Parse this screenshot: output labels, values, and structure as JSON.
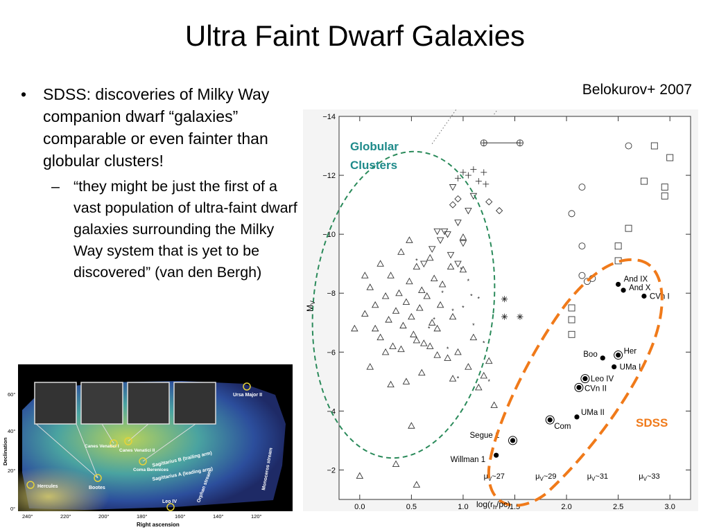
{
  "slide": {
    "title": "Ultra Faint Dwarf Galaxies",
    "bullet": "SDSS: discoveries of Milky Way companion dwarf “galaxies” comparable or even fainter than globular clusters!",
    "sub_bullet": "“they might be just the first of a vast population of ultra-faint dwarf galaxies surrounding the Milky Way system that is yet to be discovered”  (van den Bergh)",
    "bullet_marker": "•",
    "sub_marker": "–",
    "credit": "Belokurov+ 2007"
  },
  "colors": {
    "globular_ellipse": "#2a8a5a",
    "sdss_ellipse": "#f07a1a",
    "globular_label": "#1e8a8a",
    "sdss_label": "#f07a1a"
  },
  "chart_data": {
    "type": "scatter",
    "xlabel": "log(r",
    "xlabel_sub": "h",
    "xlabel_end": "/pc)",
    "ylabel": "M",
    "ylabel_sub": "V",
    "xlim": [
      -0.2,
      3.2
    ],
    "ylim": [
      -1.0,
      -14.0
    ],
    "xticks": [
      0.0,
      0.5,
      1.0,
      1.5,
      2.0,
      2.5,
      3.0
    ],
    "xtick_labels": [
      "0.0",
      "0.5",
      "1.0",
      "1.5",
      "2.0",
      "2.5",
      "3.0"
    ],
    "yticks": [
      -14,
      -12,
      -10,
      -8,
      -6,
      -4,
      -2
    ],
    "ytick_labels": [
      "−14",
      "−12",
      "−10",
      "−8",
      "−6",
      "−4",
      "−2"
    ],
    "iso_lines": [
      {
        "label": "μ",
        "sub": "V",
        "value": "~27",
        "mu": 27
      },
      {
        "label": "μ",
        "sub": "V",
        "value": "~29",
        "mu": 29
      },
      {
        "label": "μ",
        "sub": "V",
        "value": "~31",
        "mu": 31
      },
      {
        "label": "μ",
        "sub": "V",
        "value": "~33",
        "mu": 33
      }
    ],
    "annotations": {
      "globular": [
        "Globular",
        "Clusters"
      ],
      "sdss": "SDSS"
    },
    "named_points": [
      {
        "name": "And IX",
        "x": 2.5,
        "y": -8.3,
        "marker": "dot"
      },
      {
        "name": "And X",
        "x": 2.55,
        "y": -8.1,
        "marker": "dot"
      },
      {
        "name": "CVn I",
        "x": 2.75,
        "y": -7.9,
        "marker": "dot"
      },
      {
        "name": "Her",
        "x": 2.5,
        "y": -5.9,
        "marker": "ringdot"
      },
      {
        "name": "Boo",
        "x": 2.35,
        "y": -5.8,
        "marker": "dot"
      },
      {
        "name": "UMa I",
        "x": 2.46,
        "y": -5.5,
        "marker": "dot"
      },
      {
        "name": "Leo IV",
        "x": 2.18,
        "y": -5.1,
        "marker": "ringdot"
      },
      {
        "name": "CVn II",
        "x": 2.12,
        "y": -4.8,
        "marker": "ringdot"
      },
      {
        "name": "UMa II",
        "x": 2.1,
        "y": -3.8,
        "marker": "dot"
      },
      {
        "name": "Com",
        "x": 1.84,
        "y": -3.7,
        "marker": "ringdot"
      },
      {
        "name": "Segue 1",
        "x": 1.48,
        "y": -3.0,
        "marker": "ringdot"
      },
      {
        "name": "Willman 1",
        "x": 1.32,
        "y": -2.5,
        "marker": "dot"
      }
    ],
    "series": [
      {
        "marker": "triangle",
        "points": [
          [
            -0.05,
            -6.8
          ],
          [
            0.05,
            -7.3
          ],
          [
            0.1,
            -8.2
          ],
          [
            0.15,
            -7.6
          ],
          [
            0.2,
            -9.0
          ],
          [
            0.2,
            -6.5
          ],
          [
            0.25,
            -7.9
          ],
          [
            0.28,
            -7.1
          ],
          [
            0.3,
            -8.6
          ],
          [
            0.32,
            -6.2
          ],
          [
            0.35,
            -7.4
          ],
          [
            0.38,
            -8.0
          ],
          [
            0.4,
            -9.4
          ],
          [
            0.42,
            -6.9
          ],
          [
            0.45,
            -7.7
          ],
          [
            0.48,
            -8.4
          ],
          [
            0.5,
            -7.2
          ],
          [
            0.52,
            -6.6
          ],
          [
            0.55,
            -8.9
          ],
          [
            0.58,
            -7.5
          ],
          [
            0.6,
            -8.1
          ],
          [
            0.62,
            -6.3
          ],
          [
            0.65,
            -7.9
          ],
          [
            0.68,
            -9.2
          ],
          [
            0.7,
            -7.0
          ],
          [
            0.72,
            -8.5
          ],
          [
            0.75,
            -6.8
          ],
          [
            0.78,
            -7.6
          ],
          [
            0.8,
            -8.3
          ],
          [
            0.85,
            -5.8
          ],
          [
            0.9,
            -7.2
          ],
          [
            0.95,
            -6.0
          ],
          [
            1.0,
            -8.8
          ],
          [
            1.05,
            -5.5
          ],
          [
            1.1,
            -6.5
          ],
          [
            1.15,
            -4.8
          ],
          [
            1.2,
            -5.2
          ],
          [
            1.3,
            -4.2
          ],
          [
            0.3,
            -4.9
          ],
          [
            0.5,
            -3.5
          ],
          [
            0.35,
            -2.2
          ],
          [
            0.1,
            -5.5
          ],
          [
            0.0,
            -1.8
          ],
          [
            0.55,
            -1.5
          ],
          [
            0.9,
            -5.1
          ],
          [
            1.25,
            -5.7
          ],
          [
            0.45,
            -5.0
          ],
          [
            0.6,
            -5.3
          ],
          [
            0.75,
            -5.9
          ],
          [
            0.25,
            -6.0
          ],
          [
            0.4,
            -6.1
          ],
          [
            0.55,
            -6.4
          ],
          [
            0.05,
            -8.6
          ],
          [
            0.15,
            -6.8
          ],
          [
            0.68,
            -6.2
          ],
          [
            0.88,
            -8.9
          ],
          [
            1.0,
            -9.9
          ],
          [
            0.48,
            -9.8
          ]
        ]
      },
      {
        "marker": "invtriangle",
        "points": [
          [
            0.62,
            -9.0
          ],
          [
            0.7,
            -9.5
          ],
          [
            0.78,
            -9.8
          ],
          [
            0.82,
            -10.1
          ],
          [
            0.88,
            -9.3
          ],
          [
            0.95,
            -10.4
          ],
          [
            1.0,
            -9.7
          ],
          [
            1.05,
            -10.8
          ],
          [
            1.1,
            -11.3
          ],
          [
            0.9,
            -11.6
          ],
          [
            0.85,
            -10.0
          ],
          [
            0.75,
            -10.1
          ],
          [
            0.95,
            -9.0
          ]
        ]
      },
      {
        "marker": "star",
        "points": [
          [
            0.55,
            -9.1
          ],
          [
            0.72,
            -7.1
          ],
          [
            0.8,
            -8.0
          ],
          [
            0.85,
            -6.1
          ],
          [
            0.9,
            -7.4
          ],
          [
            1.0,
            -7.5
          ],
          [
            1.05,
            -8.4
          ],
          [
            1.1,
            -6.9
          ],
          [
            1.15,
            -7.8
          ],
          [
            1.2,
            -6.3
          ],
          [
            0.95,
            -5.1
          ],
          [
            1.25,
            -5.0
          ],
          [
            0.98,
            -8.8
          ],
          [
            1.08,
            -7.9
          ],
          [
            0.67,
            -6.8
          ]
        ]
      },
      {
        "marker": "plus",
        "points": [
          [
            0.95,
            -11.9
          ],
          [
            1.0,
            -12.1
          ],
          [
            1.05,
            -12.0
          ],
          [
            1.1,
            -12.2
          ],
          [
            1.15,
            -11.8
          ],
          [
            1.2,
            -12.1
          ],
          [
            1.22,
            -11.7
          ]
        ]
      },
      {
        "marker": "asterisk",
        "points": [
          [
            1.4,
            -7.8
          ],
          [
            1.4,
            -7.2
          ],
          [
            1.55,
            -7.2
          ]
        ]
      },
      {
        "marker": "diamond",
        "points": [
          [
            0.9,
            -11.0
          ],
          [
            0.95,
            -11.2
          ],
          [
            1.25,
            -11.1
          ],
          [
            1.35,
            -10.8
          ]
        ]
      },
      {
        "marker": "circle",
        "points": [
          [
            2.6,
            -13.0
          ],
          [
            2.15,
            -11.6
          ],
          [
            2.05,
            -10.7
          ],
          [
            2.15,
            -9.6
          ],
          [
            2.15,
            -8.6
          ],
          [
            2.2,
            -8.4
          ],
          [
            2.25,
            -8.5
          ]
        ]
      },
      {
        "marker": "square",
        "points": [
          [
            2.85,
            -13.0
          ],
          [
            3.0,
            -12.6
          ],
          [
            2.75,
            -11.8
          ],
          [
            2.95,
            -11.6
          ],
          [
            2.95,
            -11.3
          ],
          [
            2.6,
            -10.2
          ],
          [
            2.5,
            -9.6
          ],
          [
            2.5,
            -9.1
          ],
          [
            2.05,
            -7.5
          ],
          [
            2.05,
            -7.1
          ],
          [
            2.05,
            -6.6
          ]
        ]
      },
      {
        "marker": "crosscircle",
        "points": [
          [
            1.2,
            -13.1
          ],
          [
            1.55,
            -13.1
          ]
        ]
      }
    ]
  },
  "skymap": {
    "ylabel": "Declination",
    "xlabel": "Right ascension",
    "xticks": [
      "240°",
      "220°",
      "200°",
      "180°",
      "160°",
      "140°",
      "120°"
    ],
    "yticks": [
      "60°",
      "40°",
      "20°",
      "0°"
    ],
    "labels": [
      {
        "text": "Ursa Major II",
        "kind": "object"
      },
      {
        "text": "Canes Venatici I",
        "kind": "object"
      },
      {
        "text": "Canes Venatici II",
        "kind": "object"
      },
      {
        "text": "Coma Berenices",
        "kind": "object"
      },
      {
        "text": "Bootes",
        "kind": "object"
      },
      {
        "text": "Hercules",
        "kind": "object"
      },
      {
        "text": "Leo IV",
        "kind": "object"
      },
      {
        "text": "Sagittarius B (trailing arm)",
        "kind": "stream"
      },
      {
        "text": "Sagittarius A (leading arm)",
        "kind": "stream"
      },
      {
        "text": "Orphan stream",
        "kind": "stream"
      },
      {
        "text": "Monoceros stream",
        "kind": "stream"
      }
    ]
  }
}
